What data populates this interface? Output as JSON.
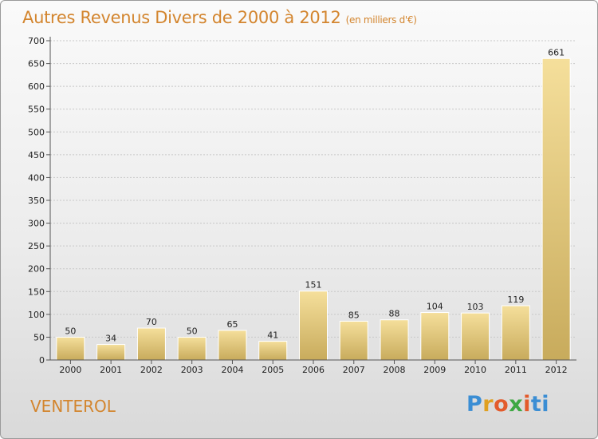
{
  "header": {
    "title": "Autres Revenus Divers de 2000 à 2012",
    "subtitle": "(en milliers d'€)"
  },
  "footer": {
    "commune": "VENTEROL",
    "brand": "Proxiti"
  },
  "colors": {
    "title": "#d3852e",
    "bar_light": "#f5df9b",
    "bar_dark": "#c8ab5c"
  },
  "chart_data": {
    "type": "bar",
    "title": "Autres Revenus Divers de 2000 à 2012",
    "subtitle": "(en milliers d'€)",
    "xlabel": "",
    "ylabel": "",
    "ylim": [
      0,
      700
    ],
    "yticks": [
      0,
      50,
      100,
      150,
      200,
      250,
      300,
      350,
      400,
      450,
      500,
      550,
      600,
      650,
      700
    ],
    "grid": true,
    "categories": [
      "2000",
      "2001",
      "2002",
      "2003",
      "2004",
      "2005",
      "2006",
      "2007",
      "2008",
      "2009",
      "2010",
      "2011",
      "2012"
    ],
    "values": [
      50,
      34,
      70,
      50,
      65,
      41,
      151,
      85,
      88,
      104,
      103,
      119,
      661
    ]
  }
}
